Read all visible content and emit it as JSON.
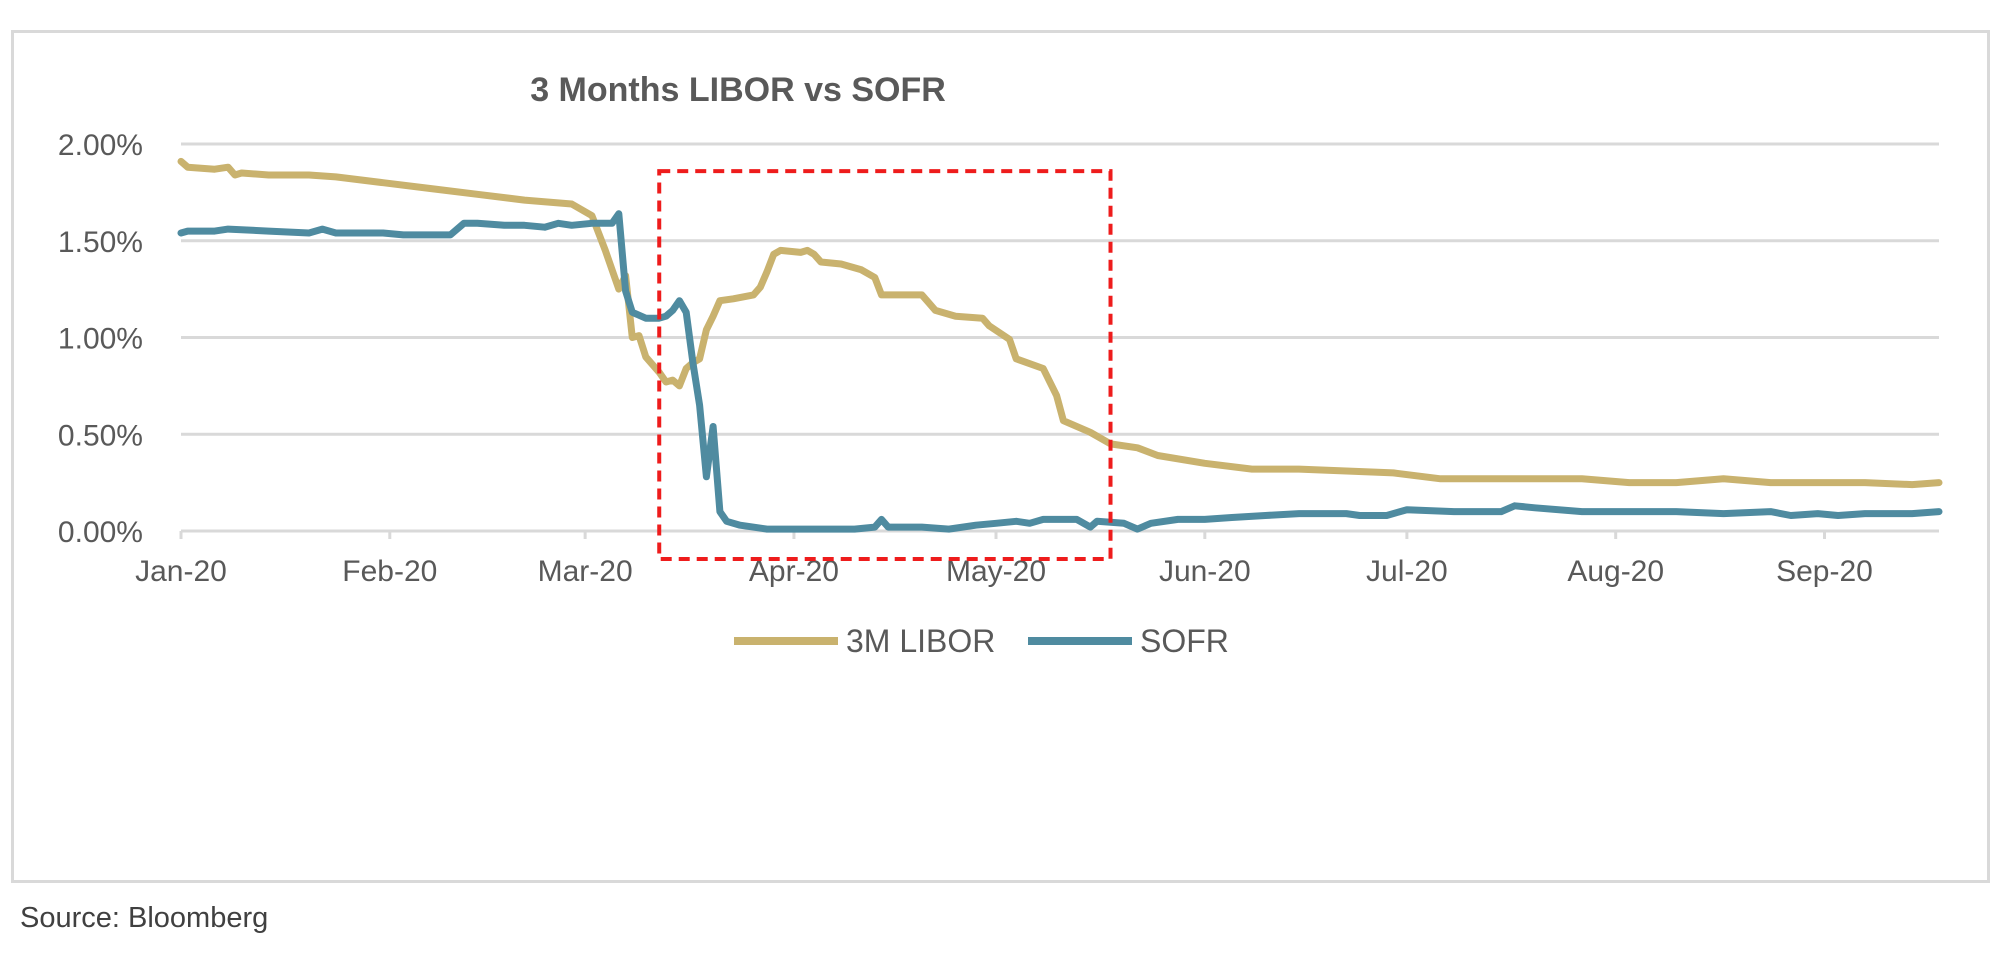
{
  "source": "Source: Bloomberg",
  "chart_data": {
    "type": "line",
    "title": "3 Months LIBOR vs SOFR",
    "xlabel": "",
    "ylabel": "",
    "ylim": [
      0,
      0.02
    ],
    "y_ticks": [
      "0.00%",
      "0.50%",
      "1.00%",
      "1.50%",
      "2.00%"
    ],
    "x_tick_labels": [
      "Jan-20",
      "Feb-20",
      "Mar-20",
      "Apr-20",
      "May-20",
      "Jun-20",
      "Jul-20",
      "Aug-20",
      "Sep-20"
    ],
    "x_tick_dates": [
      "2020-01-01",
      "2020-02-01",
      "2020-03-01",
      "2020-04-01",
      "2020-05-01",
      "2020-06-01",
      "2020-07-01",
      "2020-08-01",
      "2020-09-01"
    ],
    "xlim": [
      "2020-01-01",
      "2020-09-18"
    ],
    "grid": "horizontal",
    "legend_position": "bottom",
    "colors": {
      "libor": "#c9b26e",
      "sofr": "#4f8ba0",
      "highlight": "#ee1c1c",
      "grid": "#d9d9d9"
    },
    "highlight_box": {
      "x_from": "2020-03-12",
      "x_to": "2020-05-18",
      "y_from": 0.0,
      "y_to": 0.0186
    },
    "series": [
      {
        "name": "3M LIBOR",
        "points": [
          [
            "2020-01-01",
            0.0191
          ],
          [
            "2020-01-02",
            0.0188
          ],
          [
            "2020-01-06",
            0.0187
          ],
          [
            "2020-01-08",
            0.0188
          ],
          [
            "2020-01-09",
            0.0184
          ],
          [
            "2020-01-10",
            0.0185
          ],
          [
            "2020-01-14",
            0.0184
          ],
          [
            "2020-01-20",
            0.0184
          ],
          [
            "2020-01-24",
            0.0183
          ],
          [
            "2020-01-31",
            0.018
          ],
          [
            "2020-02-07",
            0.0177
          ],
          [
            "2020-02-14",
            0.0174
          ],
          [
            "2020-02-21",
            0.0171
          ],
          [
            "2020-02-28",
            0.0169
          ],
          [
            "2020-03-02",
            0.0163
          ],
          [
            "2020-03-04",
            0.0145
          ],
          [
            "2020-03-06",
            0.0125
          ],
          [
            "2020-03-07",
            0.0132
          ],
          [
            "2020-03-08",
            0.01
          ],
          [
            "2020-03-09",
            0.0101
          ],
          [
            "2020-03-10",
            0.009
          ],
          [
            "2020-03-12",
            0.0082
          ],
          [
            "2020-03-13",
            0.0077
          ],
          [
            "2020-03-14",
            0.0078
          ],
          [
            "2020-03-15",
            0.0075
          ],
          [
            "2020-03-16",
            0.0084
          ],
          [
            "2020-03-17",
            0.0087
          ],
          [
            "2020-03-18",
            0.0089
          ],
          [
            "2020-03-19",
            0.0104
          ],
          [
            "2020-03-20",
            0.0111
          ],
          [
            "2020-03-21",
            0.0119
          ],
          [
            "2020-03-23",
            0.012
          ],
          [
            "2020-03-26",
            0.0122
          ],
          [
            "2020-03-27",
            0.0126
          ],
          [
            "2020-03-28",
            0.0134
          ],
          [
            "2020-03-29",
            0.0143
          ],
          [
            "2020-03-30",
            0.0145
          ],
          [
            "2020-04-02",
            0.0144
          ],
          [
            "2020-04-03",
            0.0145
          ],
          [
            "2020-04-04",
            0.0143
          ],
          [
            "2020-04-05",
            0.0139
          ],
          [
            "2020-04-08",
            0.0138
          ],
          [
            "2020-04-11",
            0.0135
          ],
          [
            "2020-04-13",
            0.0131
          ],
          [
            "2020-04-14",
            0.0122
          ],
          [
            "2020-04-20",
            0.0122
          ],
          [
            "2020-04-21",
            0.0118
          ],
          [
            "2020-04-22",
            0.0114
          ],
          [
            "2020-04-25",
            0.0111
          ],
          [
            "2020-04-29",
            0.011
          ],
          [
            "2020-04-30",
            0.0106
          ],
          [
            "2020-05-03",
            0.0099
          ],
          [
            "2020-05-04",
            0.0089
          ],
          [
            "2020-05-08",
            0.0084
          ],
          [
            "2020-05-10",
            0.007
          ],
          [
            "2020-05-11",
            0.0057
          ],
          [
            "2020-05-15",
            0.0051
          ],
          [
            "2020-05-18",
            0.0045
          ],
          [
            "2020-05-22",
            0.0043
          ],
          [
            "2020-05-25",
            0.0039
          ],
          [
            "2020-06-01",
            0.0035
          ],
          [
            "2020-06-08",
            0.0032
          ],
          [
            "2020-06-15",
            0.0032
          ],
          [
            "2020-06-22",
            0.0031
          ],
          [
            "2020-06-29",
            0.003
          ],
          [
            "2020-07-06",
            0.0027
          ],
          [
            "2020-07-13",
            0.0027
          ],
          [
            "2020-07-20",
            0.0027
          ],
          [
            "2020-07-27",
            0.0027
          ],
          [
            "2020-08-03",
            0.0025
          ],
          [
            "2020-08-10",
            0.0025
          ],
          [
            "2020-08-17",
            0.0027
          ],
          [
            "2020-08-24",
            0.0025
          ],
          [
            "2020-08-31",
            0.0025
          ],
          [
            "2020-09-07",
            0.0025
          ],
          [
            "2020-09-14",
            0.0024
          ],
          [
            "2020-09-18",
            0.0025
          ]
        ]
      },
      {
        "name": "SOFR",
        "points": [
          [
            "2020-01-01",
            0.0154
          ],
          [
            "2020-01-02",
            0.0155
          ],
          [
            "2020-01-06",
            0.0155
          ],
          [
            "2020-01-08",
            0.0156
          ],
          [
            "2020-01-14",
            0.0155
          ],
          [
            "2020-01-20",
            0.0154
          ],
          [
            "2020-01-22",
            0.0156
          ],
          [
            "2020-01-24",
            0.0154
          ],
          [
            "2020-01-29",
            0.0154
          ],
          [
            "2020-01-31",
            0.0154
          ],
          [
            "2020-02-03",
            0.0153
          ],
          [
            "2020-02-07",
            0.0153
          ],
          [
            "2020-02-10",
            0.0153
          ],
          [
            "2020-02-12",
            0.0159
          ],
          [
            "2020-02-14",
            0.0159
          ],
          [
            "2020-02-18",
            0.0158
          ],
          [
            "2020-02-21",
            0.0158
          ],
          [
            "2020-02-24",
            0.0157
          ],
          [
            "2020-02-26",
            0.0159
          ],
          [
            "2020-02-28",
            0.0158
          ],
          [
            "2020-03-02",
            0.0159
          ],
          [
            "2020-03-05",
            0.0159
          ],
          [
            "2020-03-06",
            0.0164
          ],
          [
            "2020-03-07",
            0.0124
          ],
          [
            "2020-03-08",
            0.0113
          ],
          [
            "2020-03-10",
            0.011
          ],
          [
            "2020-03-12",
            0.011
          ],
          [
            "2020-03-13",
            0.0111
          ],
          [
            "2020-03-14",
            0.0114
          ],
          [
            "2020-03-15",
            0.0119
          ],
          [
            "2020-03-16",
            0.0113
          ],
          [
            "2020-03-17",
            0.0087
          ],
          [
            "2020-03-18",
            0.0065
          ],
          [
            "2020-03-19",
            0.0028
          ],
          [
            "2020-03-20",
            0.0054
          ],
          [
            "2020-03-21",
            0.001
          ],
          [
            "2020-03-22",
            0.0005
          ],
          [
            "2020-03-24",
            0.0003
          ],
          [
            "2020-03-28",
            0.0001
          ],
          [
            "2020-04-09",
            0.0001
          ],
          [
            "2020-04-10",
            0.0001
          ],
          [
            "2020-04-13",
            0.0002
          ],
          [
            "2020-04-14",
            0.0006
          ],
          [
            "2020-04-15",
            0.0002
          ],
          [
            "2020-04-20",
            0.0002
          ],
          [
            "2020-04-24",
            0.0001
          ],
          [
            "2020-04-28",
            0.0003
          ],
          [
            "2020-05-01",
            0.0004
          ],
          [
            "2020-05-04",
            0.0005
          ],
          [
            "2020-05-06",
            0.0004
          ],
          [
            "2020-05-08",
            0.0006
          ],
          [
            "2020-05-13",
            0.0006
          ],
          [
            "2020-05-15",
            0.0002
          ],
          [
            "2020-05-16",
            0.0005
          ],
          [
            "2020-05-20",
            0.0004
          ],
          [
            "2020-05-22",
            0.0001
          ],
          [
            "2020-05-24",
            0.0004
          ],
          [
            "2020-05-28",
            0.0006
          ],
          [
            "2020-06-01",
            0.0006
          ],
          [
            "2020-06-05",
            0.0007
          ],
          [
            "2020-06-10",
            0.0008
          ],
          [
            "2020-06-15",
            0.0009
          ],
          [
            "2020-06-22",
            0.0009
          ],
          [
            "2020-06-24",
            0.0008
          ],
          [
            "2020-06-28",
            0.0008
          ],
          [
            "2020-07-01",
            0.0011
          ],
          [
            "2020-07-08",
            0.001
          ],
          [
            "2020-07-15",
            0.001
          ],
          [
            "2020-07-17",
            0.0013
          ],
          [
            "2020-07-20",
            0.0012
          ],
          [
            "2020-07-27",
            0.001
          ],
          [
            "2020-08-03",
            0.001
          ],
          [
            "2020-08-10",
            0.001
          ],
          [
            "2020-08-17",
            0.0009
          ],
          [
            "2020-08-24",
            0.001
          ],
          [
            "2020-08-27",
            0.0008
          ],
          [
            "2020-08-31",
            0.0009
          ],
          [
            "2020-09-03",
            0.0008
          ],
          [
            "2020-09-07",
            0.0009
          ],
          [
            "2020-09-14",
            0.0009
          ],
          [
            "2020-09-18",
            0.001
          ]
        ]
      }
    ]
  }
}
